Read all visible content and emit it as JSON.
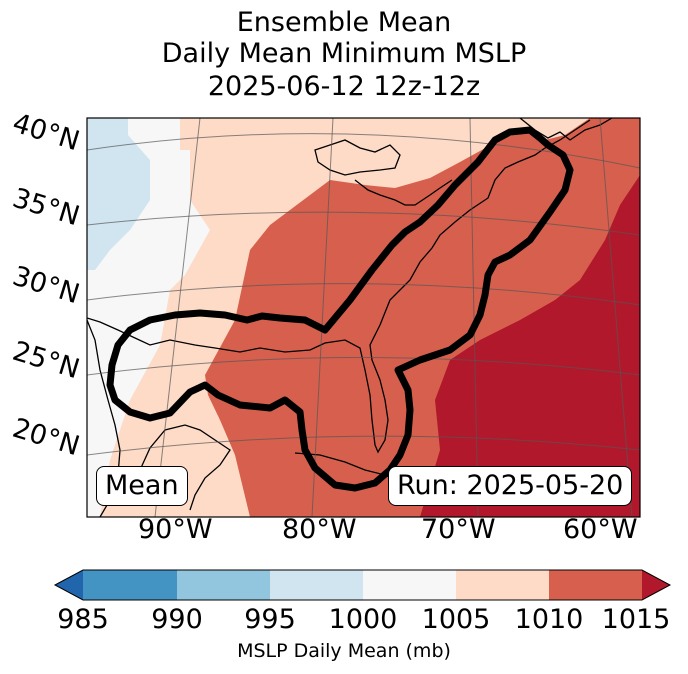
{
  "title": {
    "line1": "Ensemble Mean",
    "line2": "Daily Mean Minimum MSLP",
    "line3": "2025-06-12 12z-12z"
  },
  "map": {
    "lat_labels": [
      "40°N",
      "35°N",
      "30°N",
      "25°N",
      "20°N"
    ],
    "lon_labels": [
      "90°W",
      "80°W",
      "70°W",
      "60°W"
    ],
    "mean_box": "Mean",
    "run_box": "Run: 2025-05-20"
  },
  "colorbar": {
    "ticks": [
      "985",
      "990",
      "995",
      "1000",
      "1005",
      "1010",
      "1015"
    ],
    "label": "MSLP Daily Mean (mb)",
    "bin_colors": [
      "#2166ac",
      "#4393c3",
      "#92c5de",
      "#d1e5f0",
      "#f7f7f7",
      "#fddbc7",
      "#d6604d",
      "#b2182b"
    ]
  },
  "colors": {
    "c1000": "#f7f7f7",
    "c995": "#d1e5f0",
    "c1005": "#fddbc7",
    "c1010": "#d6604d",
    "c1015": "#b2182b"
  }
}
